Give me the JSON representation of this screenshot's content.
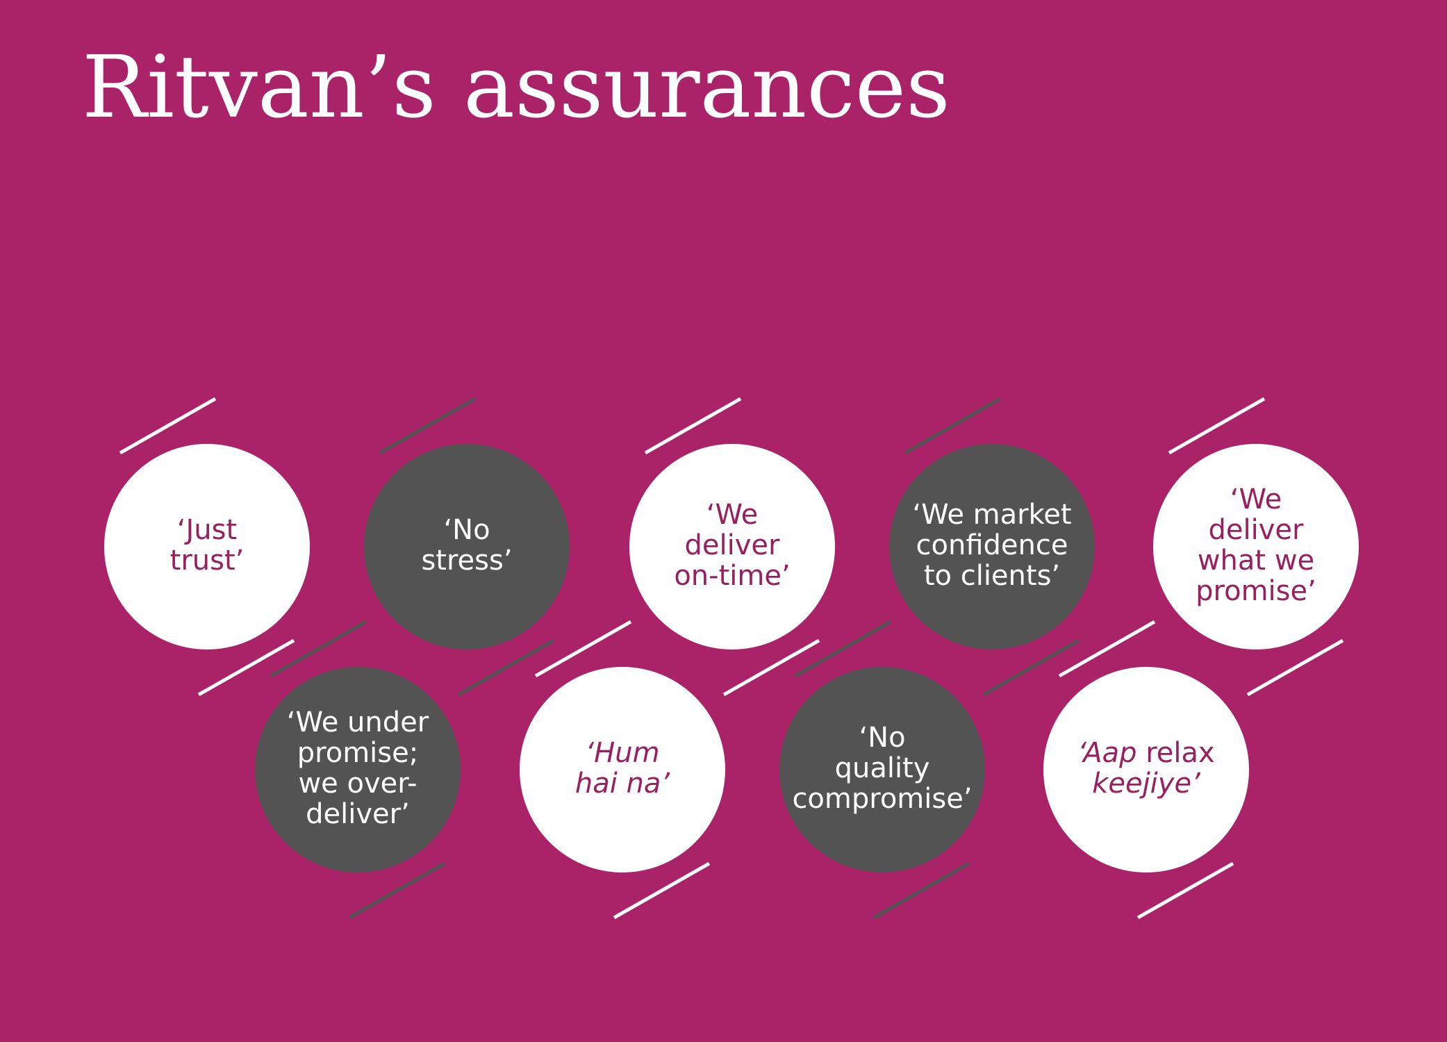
{
  "title": "Ritvan’s assurances",
  "colors": {
    "background": "#aa2368",
    "title": "#ffffff",
    "white_circle": "#ffffff",
    "dark_circle": "#535353",
    "white_circle_text": "#98205e",
    "dark_circle_text": "#ffffff",
    "white_connector": "#ffffff",
    "dark_connector": "#535353"
  },
  "assurances": [
    {
      "style": "white",
      "lines": [
        "‘Just",
        "trust’"
      ]
    },
    {
      "style": "dark",
      "lines": [
        "‘No",
        "stress’"
      ]
    },
    {
      "style": "white",
      "lines": [
        "‘We",
        "deliver",
        "on-time’"
      ]
    },
    {
      "style": "dark",
      "lines": [
        "‘We market",
        "confidence",
        "to clients’"
      ]
    },
    {
      "style": "white",
      "lines": [
        "‘We",
        "deliver",
        "what we",
        "promise’"
      ]
    },
    {
      "style": "dark",
      "lines": [
        "‘We under",
        "promise;",
        "we over-",
        "deliver’"
      ]
    },
    {
      "style": "white",
      "italic": true,
      "lines": [
        "‘Hum",
        "hai na’"
      ]
    },
    {
      "style": "dark",
      "lines": [
        "‘No",
        "quality",
        "compromise’"
      ]
    },
    {
      "style": "white",
      "lines": [
        "‘Aap relax",
        "keejiye’"
      ],
      "italic_words": [
        "Aap",
        "keejiye"
      ]
    }
  ]
}
